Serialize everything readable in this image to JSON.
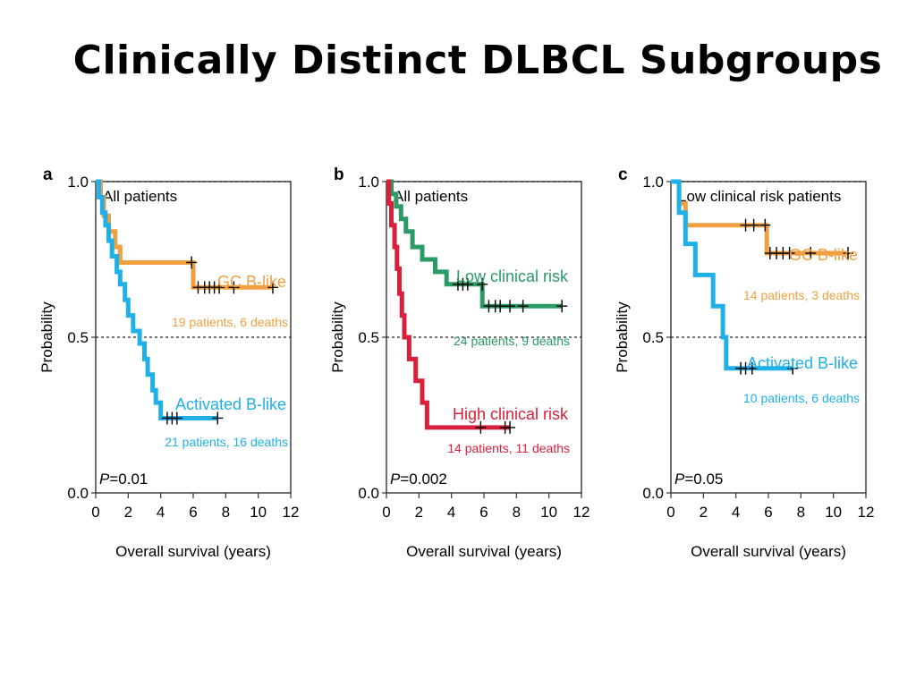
{
  "title": "Clinically Distinct DLBCL Subgroups",
  "colors": {
    "orange": "#f0a040",
    "blue": "#20b0e8",
    "green": "#2a9a66",
    "red": "#d8203a"
  },
  "chart_data": [
    {
      "type": "line",
      "panel": "a",
      "title": "All patients",
      "xlabel": "Overall survival (years)",
      "ylabel": "Probability",
      "xlim": [
        0,
        12
      ],
      "ylim": [
        0,
        1
      ],
      "xticks": [
        "0",
        "2",
        "4",
        "6",
        "8",
        "10",
        "12"
      ],
      "yticks": [
        "0.0",
        "0.5",
        "1.0"
      ],
      "reference_lines": [
        0.5,
        1.0
      ],
      "pvalue": "=0.01",
      "series": [
        {
          "name": "GC B-like",
          "info": "19 patients, 6 deaths",
          "color": "orange",
          "points": [
            [
              0,
              1.0
            ],
            [
              0.3,
              0.95
            ],
            [
              0.5,
              0.89
            ],
            [
              0.8,
              0.84
            ],
            [
              1.2,
              0.79
            ],
            [
              1.5,
              0.74
            ],
            [
              6.0,
              0.74
            ],
            [
              6.0,
              0.66
            ],
            [
              10.9,
              0.66
            ]
          ],
          "censors": [
            [
              5.9,
              0.74
            ],
            [
              6.3,
              0.66
            ],
            [
              6.7,
              0.66
            ],
            [
              7.0,
              0.66
            ],
            [
              7.3,
              0.66
            ],
            [
              7.6,
              0.66
            ],
            [
              8.5,
              0.66
            ],
            [
              10.9,
              0.66
            ]
          ]
        },
        {
          "name": "Activated B-like",
          "info": "21 patients, 16 deaths",
          "color": "blue",
          "points": [
            [
              0,
              1.0
            ],
            [
              0.2,
              0.95
            ],
            [
              0.4,
              0.9
            ],
            [
              0.6,
              0.86
            ],
            [
              0.8,
              0.81
            ],
            [
              1.0,
              0.76
            ],
            [
              1.3,
              0.71
            ],
            [
              1.5,
              0.67
            ],
            [
              1.8,
              0.62
            ],
            [
              2.0,
              0.57
            ],
            [
              2.3,
              0.52
            ],
            [
              2.7,
              0.48
            ],
            [
              3.0,
              0.43
            ],
            [
              3.2,
              0.38
            ],
            [
              3.5,
              0.33
            ],
            [
              3.7,
              0.29
            ],
            [
              4.0,
              0.24
            ],
            [
              7.5,
              0.24
            ]
          ],
          "censors": [
            [
              4.4,
              0.24
            ],
            [
              4.7,
              0.24
            ],
            [
              5.0,
              0.24
            ],
            [
              7.5,
              0.24
            ]
          ]
        }
      ]
    },
    {
      "type": "line",
      "panel": "b",
      "title": "All patients",
      "xlabel": "Overall survival (years)",
      "ylabel": "Probability",
      "xlim": [
        0,
        12
      ],
      "ylim": [
        0,
        1
      ],
      "xticks": [
        "0",
        "2",
        "4",
        "6",
        "8",
        "10",
        "12"
      ],
      "yticks": [
        "0.0",
        "0.5",
        "1.0"
      ],
      "reference_lines": [
        0.5,
        1.0
      ],
      "pvalue": "=0.002",
      "series": [
        {
          "name": "Low clinical risk",
          "info": "24 patients, 9 deaths",
          "color": "green",
          "points": [
            [
              0,
              1.0
            ],
            [
              0.3,
              0.96
            ],
            [
              0.6,
              0.92
            ],
            [
              0.9,
              0.88
            ],
            [
              1.2,
              0.84
            ],
            [
              1.6,
              0.79
            ],
            [
              2.2,
              0.75
            ],
            [
              3.0,
              0.71
            ],
            [
              3.7,
              0.67
            ],
            [
              5.9,
              0.67
            ],
            [
              5.9,
              0.6
            ],
            [
              10.8,
              0.6
            ]
          ],
          "censors": [
            [
              4.4,
              0.67
            ],
            [
              4.7,
              0.67
            ],
            [
              5.0,
              0.67
            ],
            [
              5.9,
              0.67
            ],
            [
              6.3,
              0.6
            ],
            [
              6.7,
              0.6
            ],
            [
              7.0,
              0.6
            ],
            [
              7.6,
              0.6
            ],
            [
              8.4,
              0.6
            ],
            [
              10.8,
              0.6
            ]
          ]
        },
        {
          "name": "High clinical risk",
          "info": "14 patients, 11 deaths",
          "color": "red",
          "points": [
            [
              0,
              1.0
            ],
            [
              0.15,
              0.93
            ],
            [
              0.3,
              0.86
            ],
            [
              0.5,
              0.79
            ],
            [
              0.65,
              0.72
            ],
            [
              0.8,
              0.64
            ],
            [
              0.95,
              0.57
            ],
            [
              1.1,
              0.5
            ],
            [
              1.4,
              0.43
            ],
            [
              1.8,
              0.36
            ],
            [
              2.2,
              0.29
            ],
            [
              2.5,
              0.21
            ],
            [
              7.6,
              0.21
            ]
          ],
          "censors": [
            [
              5.8,
              0.21
            ],
            [
              7.3,
              0.21
            ],
            [
              7.6,
              0.21
            ]
          ]
        }
      ]
    },
    {
      "type": "line",
      "panel": "c",
      "title": "Low clinical risk patients",
      "xlabel": "Overall survival (years)",
      "ylabel": "Probability",
      "xlim": [
        0,
        12
      ],
      "ylim": [
        0,
        1
      ],
      "xticks": [
        "0",
        "2",
        "4",
        "6",
        "8",
        "10",
        "12"
      ],
      "yticks": [
        "0.0",
        "0.5",
        "1.0"
      ],
      "reference_lines": [
        0.5,
        1.0
      ],
      "pvalue": "=0.05",
      "series": [
        {
          "name": "GC B-like",
          "info": "14 patients, 3 deaths",
          "color": "orange",
          "points": [
            [
              0,
              1.0
            ],
            [
              0.5,
              0.93
            ],
            [
              0.9,
              0.86
            ],
            [
              5.9,
              0.86
            ],
            [
              5.9,
              0.77
            ],
            [
              10.9,
              0.77
            ]
          ],
          "censors": [
            [
              4.6,
              0.86
            ],
            [
              5.1,
              0.86
            ],
            [
              5.8,
              0.86
            ],
            [
              6.1,
              0.77
            ],
            [
              6.5,
              0.77
            ],
            [
              6.9,
              0.77
            ],
            [
              7.3,
              0.77
            ],
            [
              8.6,
              0.77
            ],
            [
              10.9,
              0.77
            ]
          ]
        },
        {
          "name": "Activated B-like",
          "info": "10 patients, 6 deaths",
          "color": "blue",
          "points": [
            [
              0,
              1.0
            ],
            [
              0.5,
              0.9
            ],
            [
              0.9,
              0.8
            ],
            [
              1.5,
              0.7
            ],
            [
              2.6,
              0.6
            ],
            [
              3.2,
              0.5
            ],
            [
              3.4,
              0.4
            ],
            [
              7.5,
              0.4
            ]
          ],
          "censors": [
            [
              4.3,
              0.4
            ],
            [
              4.6,
              0.4
            ],
            [
              5.0,
              0.4
            ],
            [
              7.5,
              0.4
            ]
          ]
        }
      ]
    }
  ]
}
